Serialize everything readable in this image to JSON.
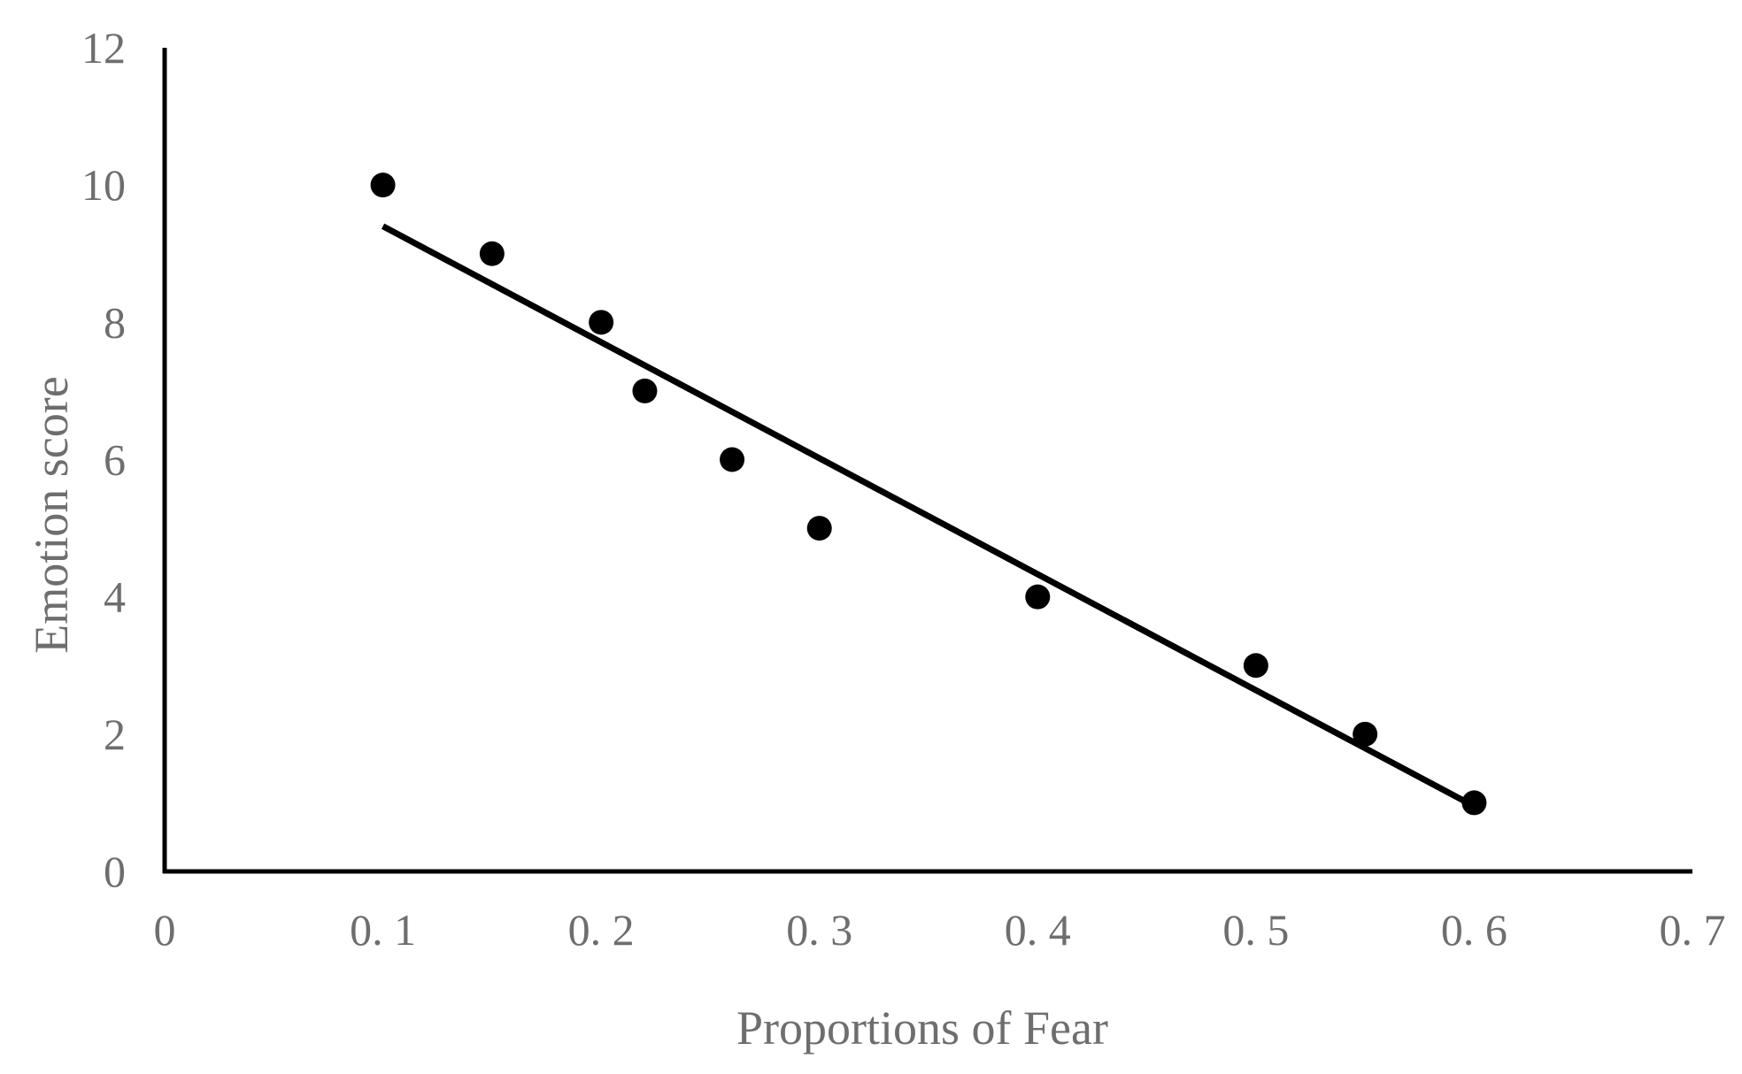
{
  "chart_data": {
    "type": "scatter",
    "title": "",
    "xlabel": "Proportions of Fear",
    "ylabel": "Emotion score",
    "xlim": [
      0,
      0.7
    ],
    "ylim": [
      0,
      12
    ],
    "x_ticks": [
      0,
      0.1,
      0.2,
      0.3,
      0.4,
      0.5,
      0.6,
      0.7
    ],
    "x_tick_labels": [
      "0",
      "0. 1",
      "0. 2",
      "0. 3",
      "0. 4",
      "0. 5",
      "0. 6",
      "0. 7"
    ],
    "y_ticks": [
      0,
      2,
      4,
      6,
      8,
      10,
      12
    ],
    "y_tick_labels": [
      "0",
      "2",
      "4",
      "6",
      "8",
      "10",
      "12"
    ],
    "grid": false,
    "legend": "none",
    "series": [
      {
        "points": [
          {
            "x": 0.1,
            "y": 10
          },
          {
            "x": 0.15,
            "y": 9
          },
          {
            "x": 0.2,
            "y": 8
          },
          {
            "x": 0.22,
            "y": 7
          },
          {
            "x": 0.26,
            "y": 6
          },
          {
            "x": 0.3,
            "y": 5
          },
          {
            "x": 0.4,
            "y": 4
          },
          {
            "x": 0.5,
            "y": 3
          },
          {
            "x": 0.55,
            "y": 2
          },
          {
            "x": 0.6,
            "y": 1
          }
        ],
        "color": "#000000"
      }
    ],
    "trendline": {
      "type": "linear",
      "from": {
        "x": 0.1,
        "y": 9.4
      },
      "to": {
        "x": 0.6,
        "y": 0.95
      },
      "color": "#000000"
    }
  }
}
